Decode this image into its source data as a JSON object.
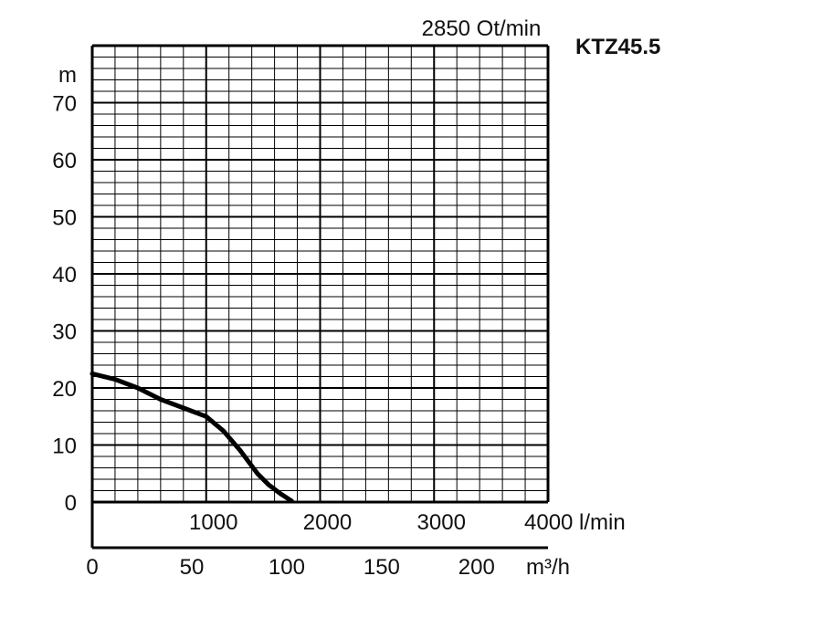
{
  "chart_data": {
    "type": "line",
    "title": "2850 Ot/min",
    "model": "KTZ45.5",
    "ylabel": "m",
    "ylim": [
      0,
      80
    ],
    "y_ticks": [
      0,
      10,
      20,
      30,
      40,
      50,
      60,
      70
    ],
    "x_primary": {
      "unit": "l/min",
      "xlim": [
        0,
        4000
      ],
      "tick_labels": [
        "1000",
        "2000",
        "3000",
        "4000 l/min"
      ],
      "tick_values": [
        1000,
        2000,
        3000,
        4000
      ]
    },
    "x_secondary": {
      "unit": "m³/h",
      "xlim": [
        0,
        240
      ],
      "ticks": [
        0,
        50,
        100,
        150,
        200
      ],
      "tick_labels": [
        "0",
        "50",
        "100",
        "150",
        "200"
      ]
    },
    "grid": true,
    "series": [
      {
        "x": [
          0,
          200,
          400,
          600,
          800,
          1000,
          1150,
          1300,
          1450,
          1550,
          1650,
          1750
        ],
        "y": [
          22.5,
          21.5,
          20,
          18,
          16.5,
          15,
          12.5,
          9,
          5,
          3,
          1.5,
          0.2
        ]
      }
    ]
  }
}
